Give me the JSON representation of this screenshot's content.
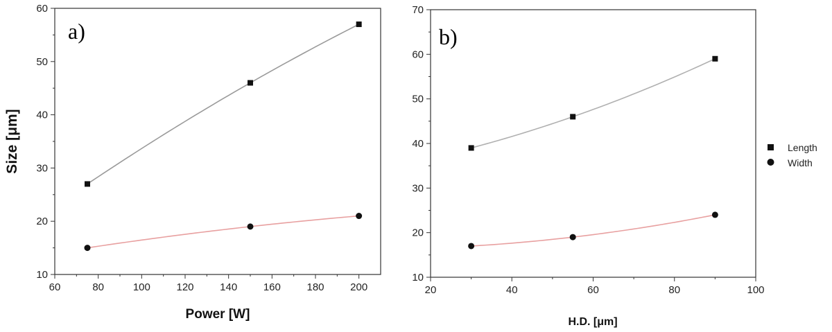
{
  "chart_data": [
    {
      "type": "scatter",
      "panel_label": "a)",
      "xlabel": "Power [W]",
      "ylabel": "Size [μm]",
      "xlim": [
        60,
        210
      ],
      "ylim": [
        10,
        60
      ],
      "xticks": [
        60,
        80,
        100,
        120,
        140,
        160,
        180,
        200
      ],
      "yticks": [
        10,
        20,
        30,
        40,
        50,
        60
      ],
      "grid": false,
      "series": [
        {
          "name": "Length",
          "marker": "square",
          "line_color": "#9a9a9a",
          "x": [
            75,
            150,
            200
          ],
          "y": [
            27,
            46,
            57
          ]
        },
        {
          "name": "Width",
          "marker": "circle",
          "line_color": "#e8a0a0",
          "x": [
            75,
            150,
            200
          ],
          "y": [
            15,
            19,
            21
          ]
        }
      ]
    },
    {
      "type": "scatter",
      "panel_label": "b)",
      "xlabel": "H.D. [μm]",
      "ylabel": "",
      "xlim": [
        20,
        100
      ],
      "ylim": [
        10,
        70
      ],
      "xticks": [
        20,
        40,
        60,
        80,
        100
      ],
      "yticks": [
        10,
        20,
        30,
        40,
        50,
        60,
        70
      ],
      "grid": false,
      "legend_position": "right",
      "series": [
        {
          "name": "Length",
          "marker": "square",
          "line_color": "#b0b0b0",
          "x": [
            30,
            55,
            90
          ],
          "y": [
            39,
            46,
            59
          ]
        },
        {
          "name": "Width",
          "marker": "circle",
          "line_color": "#e8a0a0",
          "x": [
            30,
            55,
            90
          ],
          "y": [
            17,
            19,
            24
          ]
        }
      ]
    }
  ],
  "legend": {
    "items": [
      {
        "label": "Length",
        "marker": "square"
      },
      {
        "label": "Width",
        "marker": "circle"
      }
    ]
  }
}
